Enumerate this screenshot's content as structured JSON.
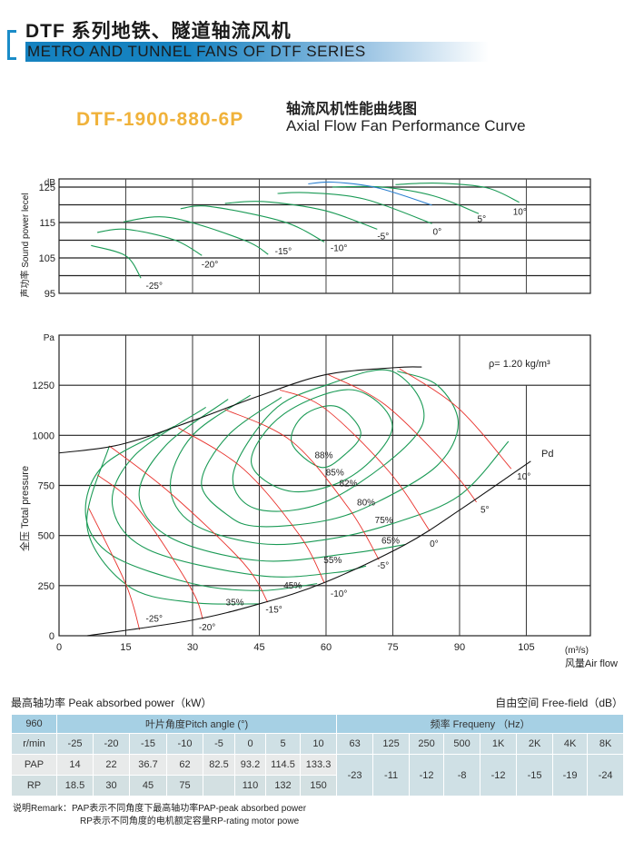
{
  "header": {
    "title_cn": "DTF 系列地铁、隧道轴流风机",
    "title_en": "METRO AND TUNNEL FANS OF DTF SERIES",
    "model": "DTF-1900-880-6P",
    "curve_title_cn": "轴流风机性能曲线图",
    "curve_title_en": "Axial Flow Fan Performance Curve"
  },
  "colors": {
    "accent": "#1582c0",
    "model": "#f0b23a",
    "efficiency": "#1a9a55",
    "pitch": "#e8302a",
    "blue_curve": "#2a7fd0"
  },
  "chart_data": [
    {
      "type": "line",
      "title": "Sound power level",
      "ylabel": "声功率 Sound power lecel",
      "yunit": "dB",
      "yticks": [
        95,
        105,
        115,
        125
      ],
      "ylim": [
        95,
        127.3
      ],
      "xlim": [
        0,
        119.4
      ],
      "grid": true,
      "series": [
        {
          "name": "-25°",
          "points": [
            [
              7.2,
              108.5
            ],
            [
              15,
              105.6
            ],
            [
              18.4,
              99.3
            ]
          ],
          "label_at": [
            19.5,
            97.3
          ]
        },
        {
          "name": "-20°",
          "points": [
            [
              8.6,
              112.2
            ],
            [
              15.1,
              113.1
            ],
            [
              25.9,
              110.1
            ],
            [
              32.1,
              105.7
            ]
          ],
          "label_at": [
            32,
            103.3
          ]
        },
        {
          "name": "-15°",
          "points": [
            [
              14.5,
              115.2
            ],
            [
              25,
              116.4
            ],
            [
              41.4,
              110.1
            ],
            [
              47,
              106
            ]
          ],
          "label_at": [
            48.5,
            107
          ]
        },
        {
          "name": "-10°",
          "points": [
            [
              27.3,
              118.9
            ],
            [
              34,
              119.5
            ],
            [
              50.5,
              115.2
            ],
            [
              59.6,
              109.5
            ]
          ],
          "label_at": [
            61,
            108
          ]
        },
        {
          "name": "-5°",
          "points": [
            [
              37.3,
              120.4
            ],
            [
              46,
              120.9
            ],
            [
              59.6,
              118.4
            ],
            [
              71.5,
              113.1
            ]
          ],
          "label_at": [
            71.5,
            111.3
          ]
        },
        {
          "name": "0°",
          "points": [
            [
              49.1,
              123.2
            ],
            [
              56,
              123.4
            ],
            [
              68.7,
              121.6
            ],
            [
              83.8,
              114.7
            ]
          ],
          "label_at": [
            84,
            112.5
          ]
        },
        {
          "name": "5°",
          "points": [
            [
              61.4,
              125
            ],
            [
              72.4,
              125
            ],
            [
              84.2,
              122.5
            ],
            [
              94.3,
              117.5
            ]
          ],
          "label_at": [
            94,
            116.2
          ]
        },
        {
          "name": "10°",
          "points": [
            [
              75.6,
              125.7
            ],
            [
              85.1,
              126.1
            ],
            [
              96.1,
              124.8
            ],
            [
              103.4,
              120.7
            ]
          ],
          "label_at": [
            102,
            118.2
          ]
        },
        {
          "name": "",
          "color": "blue",
          "points": [
            [
              56,
              125.9
            ],
            [
              61.4,
              126.4
            ],
            [
              71.5,
              124.8
            ],
            [
              83.8,
              119.9
            ]
          ]
        }
      ]
    },
    {
      "type": "line",
      "title": "Axial Flow Fan Performance Curve",
      "ylabel": "全压 Total pressure",
      "yunit": "Pa",
      "xunit": "(m³/s)",
      "xlabel": "风量Air flow",
      "xticks": [
        0,
        15,
        30,
        45,
        60,
        75,
        90,
        105
      ],
      "yticks": [
        0,
        250,
        500,
        750,
        1000,
        1250
      ],
      "xlim": [
        0,
        119.4
      ],
      "ylim": [
        0,
        1500
      ],
      "grid": true,
      "density_label": "ρ= 1.20 kg/m³",
      "pd_label": "Pd",
      "boundary": [
        [
          0,
          912
        ],
        [
          14,
          955
        ],
        [
          30.4,
          1076
        ],
        [
          45,
          1197
        ],
        [
          60,
          1303
        ],
        [
          75.6,
          1338
        ],
        [
          81.5,
          1341
        ]
      ],
      "pd_curve": [
        [
          6.3,
          0
        ],
        [
          29.5,
          76
        ],
        [
          45,
          159
        ],
        [
          59.6,
          265
        ],
        [
          77.8,
          455
        ],
        [
          90.6,
          636
        ],
        [
          106,
          871
        ]
      ],
      "pitch_lines": [
        {
          "name": "-25°",
          "points": [
            [
              6.7,
              636
            ],
            [
              15,
              258
            ],
            [
              18.1,
              30
            ]
          ],
          "label_at": [
            19.5,
            70
          ]
        },
        {
          "name": "-20°",
          "points": [
            [
              8.6,
              803
            ],
            [
              17.7,
              636
            ],
            [
              29.5,
              242
            ],
            [
              32.3,
              83
            ]
          ],
          "label_at": [
            31.4,
            28
          ]
        },
        {
          "name": "-15°",
          "points": [
            [
              11.3,
              947
            ],
            [
              25,
              712
            ],
            [
              41.4,
              364
            ],
            [
              46.9,
              167
            ]
          ],
          "label_at": [
            46.4,
            115
          ]
        },
        {
          "name": "-10°",
          "points": [
            [
              26.8,
              1038
            ],
            [
              41.4,
              833
            ],
            [
              54.1,
              500
            ],
            [
              59.6,
              265
            ]
          ],
          "label_at": [
            61,
            195
          ]
        },
        {
          "name": "-5°",
          "points": [
            [
              37.3,
              1129
            ],
            [
              52.3,
              970
            ],
            [
              65.1,
              636
            ],
            [
              71.9,
              379
            ]
          ],
          "label_at": [
            71.5,
            335
          ]
        },
        {
          "name": "0°",
          "points": [
            [
              49.6,
              1227
            ],
            [
              59.6,
              1136
            ],
            [
              74.2,
              818
            ],
            [
              83.3,
              523
            ]
          ],
          "label_at": [
            83.3,
            445
          ]
        },
        {
          "name": "5°",
          "points": [
            [
              60.5,
              1303
            ],
            [
              73.3,
              1152
            ],
            [
              87.9,
              833
            ],
            [
              93.8,
              667
            ]
          ],
          "label_at": [
            94.7,
            615
          ]
        },
        {
          "name": "10°",
          "points": [
            [
              76.5,
              1333
            ],
            [
              89.7,
              1136
            ],
            [
              101.6,
              833
            ]
          ],
          "label_at": [
            102.9,
            780
          ]
        }
      ],
      "efficiency": [
        {
          "name": "88%",
          "closed": true,
          "points": [
            [
              52.3,
              962
            ],
            [
              55,
              1100
            ],
            [
              62.4,
              1144
            ],
            [
              67.8,
              1015
            ],
            [
              64,
              900
            ],
            [
              58.7,
              841
            ]
          ],
          "label_at": [
            59.5,
            885
          ]
        },
        {
          "name": "85%",
          "closed": true,
          "points": [
            [
              43.2,
              864
            ],
            [
              52.3,
              720
            ],
            [
              66,
              800
            ],
            [
              74.9,
              1045
            ],
            [
              66,
              1227
            ],
            [
              50.5,
              1106
            ]
          ],
          "label_at": [
            62,
            800
          ]
        },
        {
          "name": "82%",
          "closed": true,
          "points": [
            [
              39.1,
              803
            ],
            [
              45,
              629
            ],
            [
              62,
              690
            ],
            [
              81.5,
              1045
            ],
            [
              75,
              1318
            ],
            [
              60,
              1250
            ],
            [
              48,
              1120
            ]
          ],
          "label_at": [
            65,
            745
          ]
        },
        {
          "name": "80%",
          "closed": false,
          "points": [
            [
              50,
              1190
            ],
            [
              38,
              1000
            ],
            [
              32,
              760
            ],
            [
              38,
              600
            ],
            [
              45,
              545
            ],
            [
              60,
              575
            ],
            [
              71.5,
              667
            ],
            [
              85,
              850
            ],
            [
              89.7,
              1060
            ],
            [
              85,
              1250
            ],
            [
              76,
              1320
            ]
          ],
          "label_at": [
            69,
            650
          ]
        },
        {
          "name": "75%",
          "closed": false,
          "points": [
            [
              43,
              1200
            ],
            [
              30,
              1000
            ],
            [
              25,
              750
            ],
            [
              30,
              560
            ],
            [
              45,
              460
            ],
            [
              60,
              480
            ],
            [
              75,
              560
            ],
            [
              90,
              700
            ],
            [
              101,
              970
            ]
          ],
          "label_at": [
            73,
            562
          ]
        },
        {
          "name": "65%",
          "closed": false,
          "points": [
            [
              38,
              1180
            ],
            [
              24,
              950
            ],
            [
              18,
              700
            ],
            [
              25,
              490
            ],
            [
              45,
              375
            ],
            [
              65,
              410
            ],
            [
              77.8,
              455
            ]
          ],
          "label_at": [
            74.5,
            460
          ]
        },
        {
          "name": "55%",
          "closed": false,
          "points": [
            [
              33,
              1140
            ],
            [
              17,
              900
            ],
            [
              12,
              650
            ],
            [
              20,
              430
            ],
            [
              45,
              300
            ],
            [
              62,
              315
            ],
            [
              69,
              348
            ]
          ],
          "label_at": [
            61.5,
            362
          ]
        },
        {
          "name": "45%",
          "closed": false,
          "points": [
            [
              25.9,
              1045
            ],
            [
              10,
              850
            ],
            [
              6,
              600
            ],
            [
              12,
              400
            ],
            [
              30,
              260
            ],
            [
              45,
              225
            ],
            [
              58,
              260
            ]
          ],
          "label_at": [
            52.5,
            235
          ]
        },
        {
          "name": "35%",
          "closed": false,
          "points": [
            [
              11.3,
              947
            ],
            [
              6.3,
              545
            ],
            [
              15.4,
              250
            ],
            [
              29.5,
              167
            ],
            [
              45,
              159
            ]
          ],
          "label_at": [
            39.5,
            152
          ]
        }
      ]
    }
  ],
  "table": {
    "peak_label": "最高轴功率 Peak absorbed power（kW）",
    "free_label": "自由空间 Free-field（dB）",
    "speed": "960",
    "speed_unit": "r/min",
    "pitch_header": "叶片角度Pitch angle (°)",
    "freq_header": "频率 Frequeny （Hz）",
    "angles": [
      "-25",
      "-20",
      "-15",
      "-10",
      "-5",
      "0",
      "5",
      "10"
    ],
    "frequencies": [
      "63",
      "125",
      "250",
      "500",
      "1K",
      "2K",
      "4K",
      "8K"
    ],
    "pap_label": "PAP",
    "pap": [
      "14",
      "22",
      "36.7",
      "62",
      "82.5",
      "93.2",
      "114.5",
      "133.3"
    ],
    "rp_label": "RP",
    "rp": [
      "18.5",
      "30",
      "45",
      "75",
      "",
      "110",
      "132",
      "150"
    ],
    "free_field": [
      "-23",
      "-11",
      "-12",
      "-8",
      "-12",
      "-15",
      "-19",
      "-24"
    ]
  },
  "remark": {
    "line1": "说明Remark：PAP表示不同角度下最高轴功率PAP-peak absorbed power",
    "line2": "RP表示不同角度的电机额定容量RP-rating motor powe"
  }
}
